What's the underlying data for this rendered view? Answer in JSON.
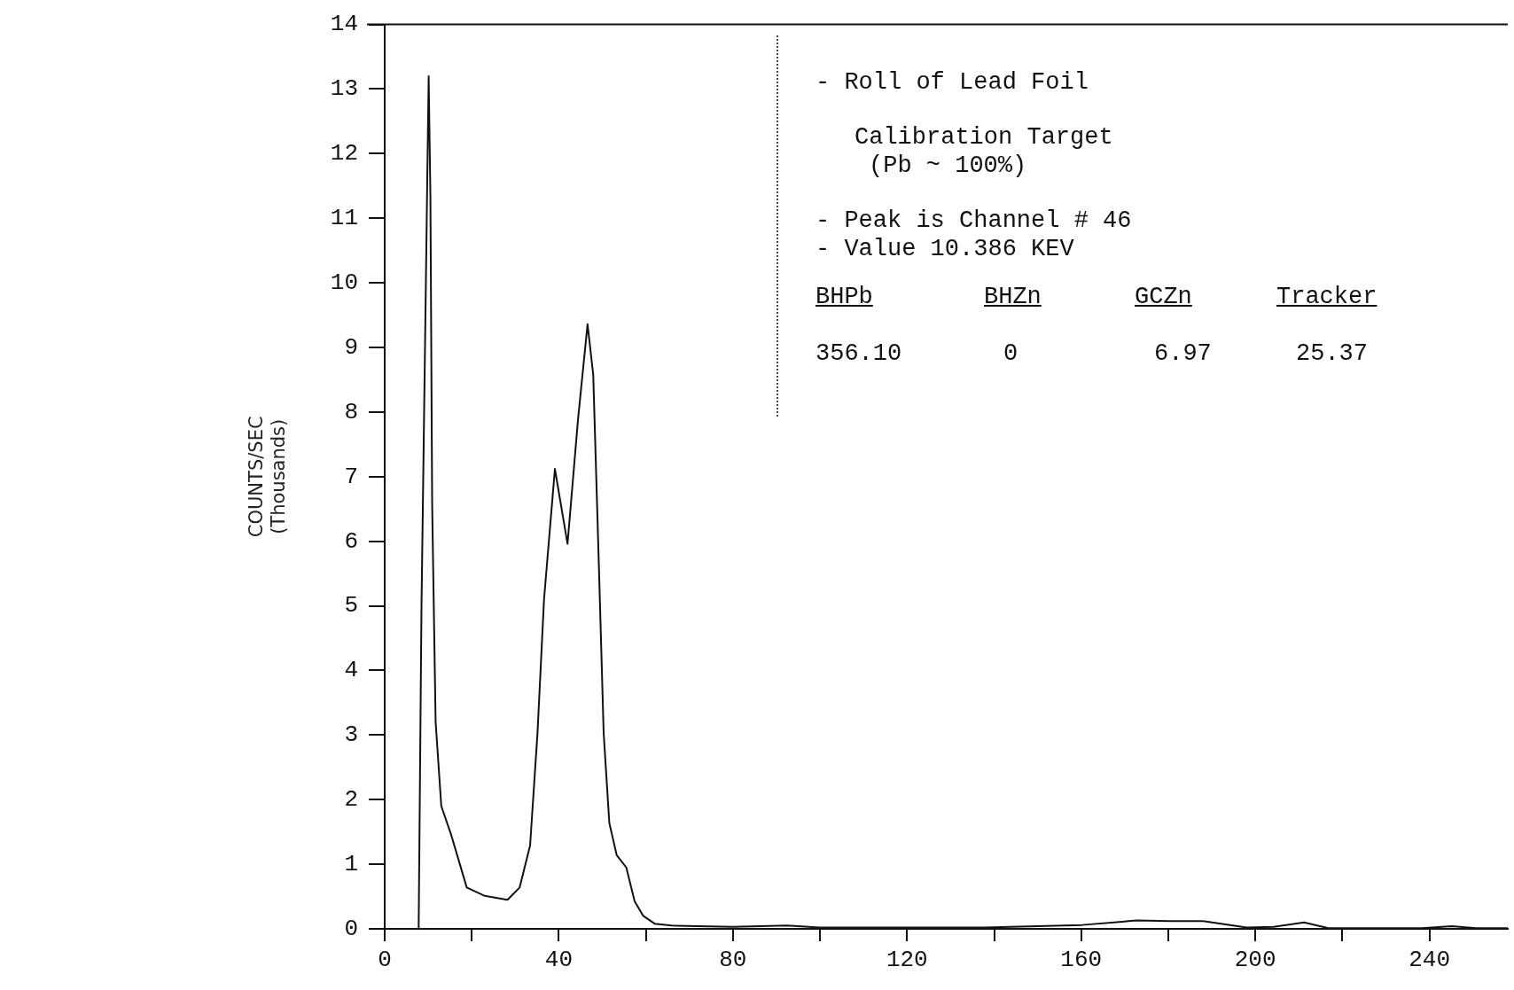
{
  "chart_data": {
    "type": "line",
    "ylabel": "COUNTS/SEC\n(Thousands)",
    "x": [
      0,
      7.8,
      8.45,
      10.1,
      10.5,
      10.9,
      11.7,
      13.0,
      15.2,
      18.85,
      23.0,
      28.2,
      31.0,
      33.4,
      35.1,
      36.6,
      39.1,
      42.0,
      44.4,
      46.6,
      47.9,
      49.2,
      50.3,
      51.6,
      53.3,
      55.5,
      57.4,
      59.4,
      62.0,
      65.9,
      80,
      92.4,
      99.9,
      120,
      137.6,
      160.2,
      172.8,
      180.4,
      188,
      198,
      204.2,
      211.2,
      216.8,
      238.2,
      245.1,
      250.8,
      258
    ],
    "series": [
      {
        "color": "#111111",
        "values": [
          0,
          0,
          4.98,
          13.2,
          11.35,
          6.58,
          3.2,
          1.9,
          1.47,
          0.64,
          0.51,
          0.45,
          0.64,
          1.29,
          3.03,
          5.1,
          7.12,
          5.96,
          7.88,
          9.36,
          8.58,
          5.63,
          3.03,
          1.64,
          1.14,
          0.95,
          0.43,
          0.2,
          0.08,
          0.05,
          0.03,
          0.05,
          0.02,
          0.02,
          0.02,
          0.06,
          0.13,
          0.12,
          0.12,
          0.02,
          0.03,
          0.1,
          0.01,
          0.01,
          0.04,
          0.01,
          0.01
        ]
      }
    ],
    "xlim": [
      0,
      258
    ],
    "xticks": [
      0,
      {
        "value": 20,
        "label": null
      },
      40,
      {
        "value": 60,
        "label": null
      },
      80,
      {
        "value": 100,
        "label": null
      },
      120,
      {
        "value": 140,
        "label": null
      },
      160,
      {
        "value": 180,
        "label": null
      },
      200,
      {
        "value": 220,
        "label": null
      },
      240
    ],
    "ylim": [
      0,
      14
    ],
    "yticks": [
      0,
      1,
      2,
      3,
      4,
      5,
      6,
      7,
      8,
      9,
      10,
      11,
      12,
      13,
      14
    ],
    "grid": false,
    "legend": false,
    "marker": "none",
    "line_style": "solid",
    "annotations": [
      "- Roll of Lead Foil",
      "Calibration Target",
      "(Pb ~ 100%)",
      "- Peak is Channel # 46",
      "- Value 10.386 KEV",
      "BHPb",
      "BHZn",
      "GCZn",
      "Tracker",
      "356.10",
      "0",
      "6.97",
      "25.37"
    ]
  }
}
